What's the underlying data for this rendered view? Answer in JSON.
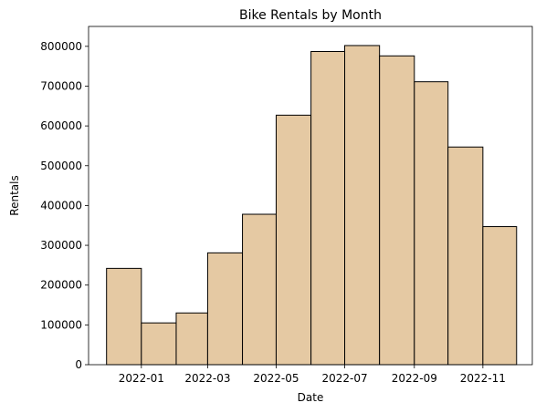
{
  "chart_data": {
    "type": "bar",
    "title": "Bike Rentals by Month",
    "xlabel": "Date",
    "ylabel": "Rentals",
    "bar_color": "#e5c9a3",
    "edge_color": "#000000",
    "x_ticks": [
      "2022-01",
      "2022-03",
      "2022-05",
      "2022-07",
      "2022-09",
      "2022-11"
    ],
    "x_range": [
      "2021-11-15",
      "2022-12-15"
    ],
    "ylim": [
      0,
      850000
    ],
    "y_ticks": [
      0,
      100000,
      200000,
      300000,
      400000,
      500000,
      600000,
      700000,
      800000
    ],
    "y_tick_labels": [
      "0",
      "100000",
      "200000",
      "300000",
      "400000",
      "500000",
      "600000",
      "700000",
      "800000"
    ],
    "bins": [
      {
        "start": "2021-12-01",
        "end": "2022-01-01",
        "value": 242000
      },
      {
        "start": "2022-01-01",
        "end": "2022-02-01",
        "value": 105000
      },
      {
        "start": "2022-02-01",
        "end": "2022-03-01",
        "value": 130000
      },
      {
        "start": "2022-03-01",
        "end": "2022-04-01",
        "value": 281000
      },
      {
        "start": "2022-04-01",
        "end": "2022-05-01",
        "value": 378000
      },
      {
        "start": "2022-05-01",
        "end": "2022-06-01",
        "value": 627000
      },
      {
        "start": "2022-06-01",
        "end": "2022-07-01",
        "value": 787000
      },
      {
        "start": "2022-07-01",
        "end": "2022-08-01",
        "value": 802000
      },
      {
        "start": "2022-08-01",
        "end": "2022-09-01",
        "value": 776000
      },
      {
        "start": "2022-09-01",
        "end": "2022-10-01",
        "value": 711000
      },
      {
        "start": "2022-10-01",
        "end": "2022-11-01",
        "value": 547000
      },
      {
        "start": "2022-11-01",
        "end": "2022-12-01",
        "value": 347000
      }
    ]
  }
}
